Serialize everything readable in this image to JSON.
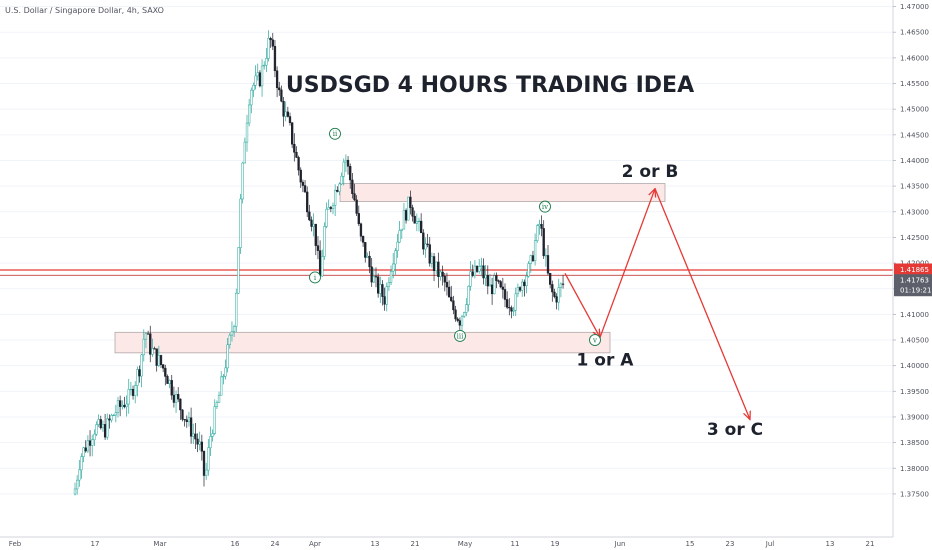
{
  "symbol_label": "U.S. Dollar / Singapore Dollar, 4h, SAXO",
  "colors": {
    "up": "#26a69a",
    "down": "#1e222d",
    "zone_fill": "#fde8e8",
    "zone_border": "#b0a8a8",
    "arrow": "#e53935",
    "wave_label": "#1b7a4a",
    "price_line": "#e53935",
    "last_price_badge": "#5d606b"
  },
  "chart_data": {
    "type": "candlestick",
    "title": "USDSGD 4 HOURS TRADING IDEA",
    "ylim": [
      1.3705,
      1.4705
    ],
    "y_ticks": [
      "1.47000",
      "1.46500",
      "1.46000",
      "1.45500",
      "1.45000",
      "1.44500",
      "1.44000",
      "1.43500",
      "1.43000",
      "1.42500",
      "1.42000",
      "1.41500",
      "1.41000",
      "1.40500",
      "1.40000",
      "1.39500",
      "1.39000",
      "1.38500",
      "1.38000",
      "1.37500"
    ],
    "x_ticks": [
      "Feb",
      "17",
      "Mar",
      "16",
      "24",
      "Apr",
      "13",
      "21",
      "May",
      "11",
      "19",
      "Jun",
      "15",
      "23",
      "Jul",
      "13",
      "21"
    ],
    "price_path": [
      {
        "date": "2020-02-13",
        "price": 1.376
      },
      {
        "date": "2020-02-14",
        "price": 1.382
      },
      {
        "date": "2020-02-17",
        "price": 1.388
      },
      {
        "date": "2020-02-19",
        "price": 1.3875
      },
      {
        "date": "2020-02-21",
        "price": 1.391
      },
      {
        "date": "2020-02-24",
        "price": 1.394
      },
      {
        "date": "2020-02-26",
        "price": 1.4
      },
      {
        "date": "2020-02-27",
        "price": 1.407
      },
      {
        "date": "2020-02-28",
        "price": 1.4035
      },
      {
        "date": "2020-03-02",
        "price": 1.399
      },
      {
        "date": "2020-03-04",
        "price": 1.394
      },
      {
        "date": "2020-03-06",
        "price": 1.39
      },
      {
        "date": "2020-03-09",
        "price": 1.384
      },
      {
        "date": "2020-03-10",
        "price": 1.3775
      },
      {
        "date": "2020-03-11",
        "price": 1.386
      },
      {
        "date": "2020-03-13",
        "price": 1.395
      },
      {
        "date": "2020-03-16",
        "price": 1.41
      },
      {
        "date": "2020-03-17",
        "price": 1.43
      },
      {
        "date": "2020-03-18",
        "price": 1.445
      },
      {
        "date": "2020-03-19",
        "price": 1.454
      },
      {
        "date": "2020-03-21",
        "price": 1.456
      },
      {
        "date": "2020-03-23",
        "price": 1.464
      },
      {
        "date": "2020-03-24",
        "price": 1.458
      },
      {
        "date": "2020-03-25",
        "price": 1.452
      },
      {
        "date": "2020-03-27",
        "price": 1.446
      },
      {
        "date": "2020-03-29",
        "price": 1.437
      },
      {
        "date": "2020-04-01",
        "price": 1.426
      },
      {
        "date": "2020-04-02",
        "price": 1.417
      },
      {
        "date": "2020-04-03",
        "price": 1.428
      },
      {
        "date": "2020-04-06",
        "price": 1.437
      },
      {
        "date": "2020-04-07",
        "price": 1.441
      },
      {
        "date": "2020-04-09",
        "price": 1.432
      },
      {
        "date": "2020-04-10",
        "price": 1.425
      },
      {
        "date": "2020-04-13",
        "price": 1.416
      },
      {
        "date": "2020-04-15",
        "price": 1.413
      },
      {
        "date": "2020-04-16",
        "price": 1.419
      },
      {
        "date": "2020-04-18",
        "price": 1.427
      },
      {
        "date": "2020-04-20",
        "price": 1.432
      },
      {
        "date": "2020-04-21",
        "price": 1.429
      },
      {
        "date": "2020-04-23",
        "price": 1.423
      },
      {
        "date": "2020-04-25",
        "price": 1.419
      },
      {
        "date": "2020-04-27",
        "price": 1.416
      },
      {
        "date": "2020-04-28",
        "price": 1.412
      },
      {
        "date": "2020-04-30",
        "price": 1.409
      },
      {
        "date": "2020-05-01",
        "price": 1.412
      },
      {
        "date": "2020-05-02",
        "price": 1.417
      },
      {
        "date": "2020-05-04",
        "price": 1.419
      },
      {
        "date": "2020-05-06",
        "price": 1.415
      },
      {
        "date": "2020-05-07",
        "price": 1.416
      },
      {
        "date": "2020-05-09",
        "price": 1.413
      },
      {
        "date": "2020-05-11",
        "price": 1.412
      },
      {
        "date": "2020-05-12",
        "price": 1.416
      },
      {
        "date": "2020-05-14",
        "price": 1.419
      },
      {
        "date": "2020-05-15",
        "price": 1.424
      },
      {
        "date": "2020-05-16",
        "price": 1.428
      },
      {
        "date": "2020-05-17",
        "price": 1.421
      },
      {
        "date": "2020-05-18",
        "price": 1.415
      },
      {
        "date": "2020-05-19",
        "price": 1.413
      },
      {
        "date": "2020-05-20",
        "price": 1.415
      },
      {
        "date": "2020-05-21",
        "price": 1.4165
      }
    ],
    "projection": [
      {
        "date": "2020-05-21",
        "price": 1.418
      },
      {
        "date": "2020-05-28",
        "price": 1.4055
      },
      {
        "date": "2020-06-08",
        "price": 1.4345
      },
      {
        "date": "2020-06-27",
        "price": 1.3895
      }
    ],
    "zones": [
      {
        "from": "2020-04-06",
        "to": "2020-06-10",
        "top": 1.4355,
        "bottom": 1.432
      },
      {
        "from": "2020-02-21",
        "to": "2020-05-30",
        "top": 1.4065,
        "bottom": 1.4025
      }
    ],
    "wave_labels": [
      {
        "label": "i",
        "date": "2020-04-01",
        "price": 1.4172
      },
      {
        "label": "ii",
        "date": "2020-04-05",
        "price": 1.4452
      },
      {
        "label": "iii",
        "date": "2020-04-30",
        "price": 1.4058
      },
      {
        "label": "iv",
        "date": "2020-05-17",
        "price": 1.431
      },
      {
        "label": "v",
        "date": "2020-05-27",
        "price": 1.405
      }
    ],
    "annotations": [
      {
        "text": "2 or B",
        "date": "2020-06-07",
        "price": 1.4368
      },
      {
        "text": "1 or A",
        "date": "2020-05-29",
        "price": 1.4
      },
      {
        "text": "3 or C",
        "date": "2020-06-24",
        "price": 1.3865
      }
    ],
    "price_lines": [
      {
        "price": 1.41865,
        "label": "1.41865"
      },
      {
        "price": 1.41763,
        "label": "1.41763",
        "countdown": "01:19:21"
      }
    ]
  }
}
